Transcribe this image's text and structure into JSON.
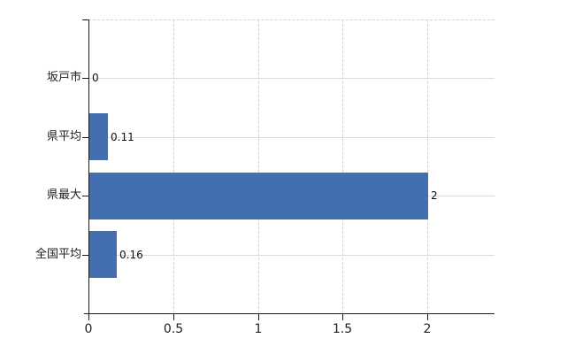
{
  "chart_data": {
    "type": "bar",
    "orientation": "horizontal",
    "title": "",
    "xlabel": "",
    "ylabel": "",
    "categories": [
      "坂戸市",
      "県平均",
      "県最大",
      "全国平均"
    ],
    "values": [
      0,
      0.11,
      2,
      0.16
    ],
    "data_labels": [
      "0",
      "0.11",
      "2",
      "0.16"
    ],
    "x_ticks": [
      0,
      0.5,
      1,
      1.5,
      2
    ],
    "x_tick_labels": [
      "0",
      "0.5",
      "1",
      "1.5",
      "2"
    ],
    "xlim": [
      0,
      2.4
    ],
    "grid": true,
    "legend": false,
    "gridline_style": {
      "vertical": "dashed",
      "horizontal": "solid",
      "top_border": "dashed"
    },
    "colors": {
      "bar": "#426fb0",
      "horizontal_gridline": "#d8ded8",
      "vertical_gridline": "#d3d0d8",
      "axis": "#1a1a1a",
      "text": "#202020",
      "background": "#ffffff"
    }
  }
}
